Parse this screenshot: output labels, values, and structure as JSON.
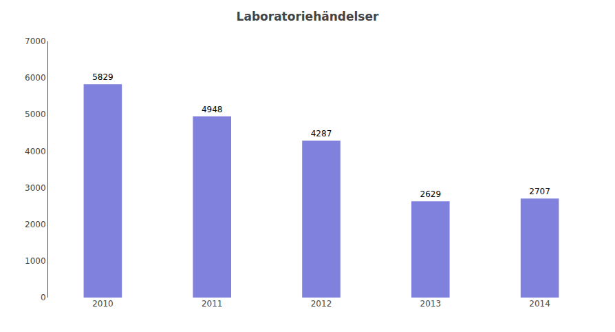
{
  "chart_data": {
    "type": "bar",
    "title": "Laboratoriehändelser",
    "categories": [
      "2010",
      "2011",
      "2012",
      "2013",
      "2014"
    ],
    "values": [
      5829,
      4948,
      4287,
      2629,
      2707
    ],
    "color": "#8080dd",
    "ylim": [
      0,
      7000
    ],
    "yticks": [
      0,
      1000,
      2000,
      3000,
      4000,
      5000,
      6000,
      7000
    ],
    "grid": false,
    "data_labels": true
  }
}
